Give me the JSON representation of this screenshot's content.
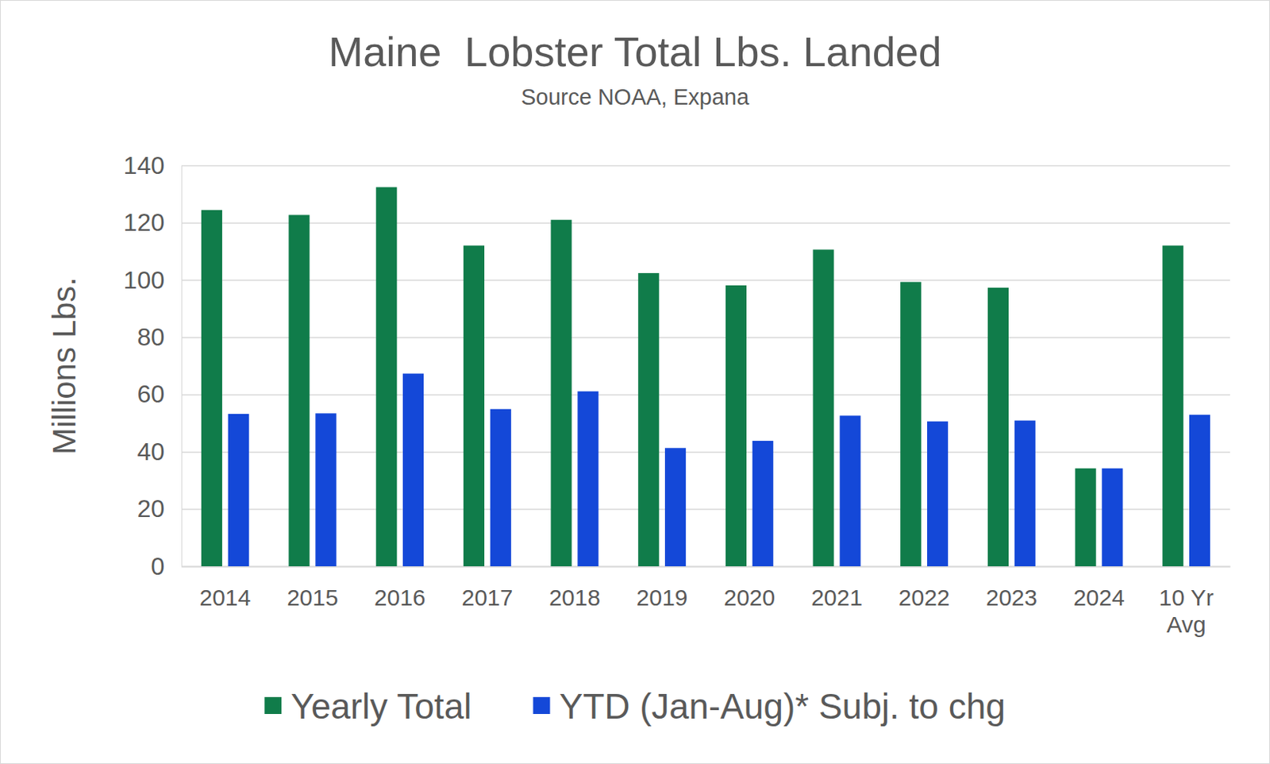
{
  "chart_data": {
    "type": "bar",
    "title": "Maine  Lobster Total Lbs. Landed",
    "subtitle": "Source NOAA, Expana",
    "y_label": "Millions Lbs.",
    "categories": [
      "2014",
      "2015",
      "2016",
      "2017",
      "2018",
      "2019",
      "2020",
      "2021",
      "2022",
      "2023",
      "2024",
      "10 Yr Avg"
    ],
    "series": [
      {
        "name": "Yearly Total",
        "color": "#107c4a",
        "values": [
          124.4,
          122.7,
          132.4,
          112,
          121,
          102.4,
          98.1,
          110.6,
          99.3,
          97.3,
          34.2,
          112
        ]
      },
      {
        "name": "YTD (Jan-Aug)* Subj. to chg",
        "color": "#1448d8",
        "values": [
          53.2,
          53.4,
          67.3,
          54.9,
          61.1,
          41.3,
          43.8,
          52.6,
          50.6,
          50.9,
          34.2,
          52.9
        ]
      }
    ],
    "ylim": [
      0,
      140
    ],
    "yticks": [
      0,
      20,
      40,
      60,
      80,
      100,
      120,
      140
    ],
    "grid": true,
    "legend": "bottom"
  }
}
